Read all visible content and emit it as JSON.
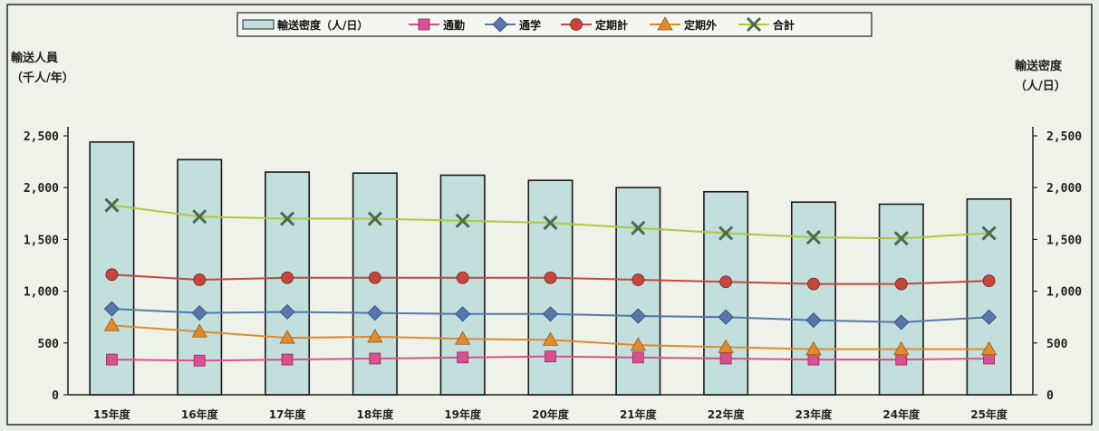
{
  "chart_data": {
    "type": "bar",
    "categories": [
      "15年度",
      "16年度",
      "17年度",
      "18年度",
      "19年度",
      "20年度",
      "21年度",
      "22年度",
      "23年度",
      "24年度",
      "25年度"
    ],
    "left_axis": {
      "title_line1": "輸送人員",
      "title_line2": "（千人/年）",
      "ylim": [
        0,
        2500
      ],
      "ticks": [
        0,
        500,
        1000,
        1500,
        2000,
        2500
      ],
      "tick_labels": [
        "0",
        "500",
        "1,000",
        "1,500",
        "2,000",
        "2,500"
      ]
    },
    "right_axis": {
      "title_line1": "輸送密度",
      "title_line2": "（人/日）",
      "ylim": [
        0,
        2500
      ],
      "ticks": [
        0,
        500,
        1000,
        1500,
        2000,
        2500
      ],
      "tick_labels": [
        "0",
        "500",
        "1,000",
        "1,500",
        "2,000",
        "2,500"
      ]
    },
    "bar_series": {
      "name": "輸送密度（人/日）",
      "axis": "right",
      "values": [
        2440,
        2270,
        2150,
        2140,
        2120,
        2070,
        2000,
        1960,
        1860,
        1840,
        1890
      ],
      "fill": "#c2dedd",
      "stroke": "#1a1a1a"
    },
    "series": [
      {
        "name": "通勤",
        "marker": "square",
        "color": "#d94f8f",
        "values": [
          340,
          330,
          340,
          350,
          360,
          370,
          360,
          350,
          340,
          340,
          350
        ]
      },
      {
        "name": "通学",
        "marker": "diamond",
        "color": "#5577aa",
        "values": [
          830,
          790,
          800,
          790,
          780,
          780,
          760,
          750,
          720,
          700,
          750
        ]
      },
      {
        "name": "定期計",
        "marker": "circle",
        "color": "#c4473f",
        "values": [
          1160,
          1110,
          1130,
          1130,
          1130,
          1130,
          1110,
          1090,
          1070,
          1070,
          1100
        ]
      },
      {
        "name": "定期外",
        "marker": "triangle",
        "color": "#e08a2e",
        "values": [
          670,
          610,
          550,
          560,
          540,
          530,
          480,
          460,
          440,
          440,
          440
        ]
      },
      {
        "name": "合計",
        "marker": "x",
        "color": "#b2c83a",
        "values": [
          1830,
          1720,
          1700,
          1700,
          1680,
          1660,
          1610,
          1560,
          1520,
          1510,
          1560
        ]
      }
    ],
    "legend_position": "top",
    "grid": false
  }
}
